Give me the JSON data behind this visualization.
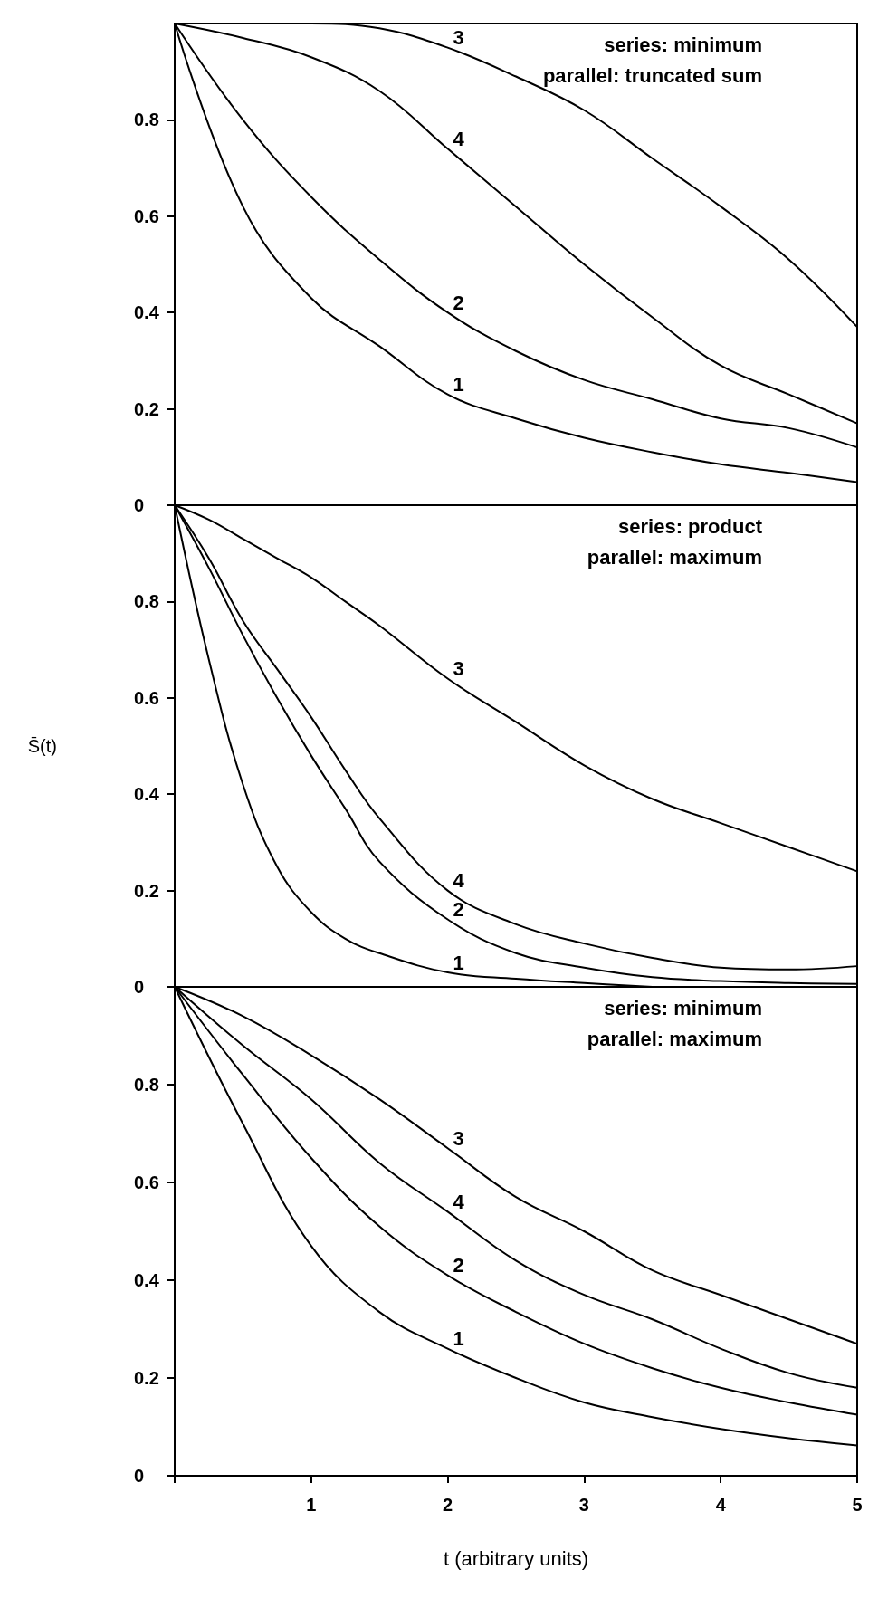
{
  "chart_data": [
    {
      "type": "line",
      "tick_labels": "y",
      "grid": false,
      "legend": false,
      "marker": "none",
      "line_style": "solid",
      "xlim": [
        0,
        5
      ],
      "ylim": [
        0,
        1
      ],
      "yticks": [
        0.8,
        0.6,
        0.4,
        0.2,
        0
      ],
      "x": [
        0,
        0.5,
        1,
        1.5,
        2,
        2.5,
        3,
        3.5,
        4,
        4.5,
        5
      ],
      "series": [
        {
          "name": "1",
          "color": "#000000",
          "values": [
            1,
            0.62,
            0.43,
            0.33,
            0.23,
            0.18,
            0.14,
            0.11,
            0.085,
            0.067,
            0.048
          ]
        },
        {
          "name": "2",
          "color": "#000000",
          "values": [
            1,
            0.8,
            0.64,
            0.51,
            0.4,
            0.32,
            0.26,
            0.22,
            0.18,
            0.16,
            0.12
          ]
        },
        {
          "name": "3",
          "color": "#000000",
          "values": [
            1,
            1,
            1,
            0.99,
            0.95,
            0.89,
            0.82,
            0.72,
            0.62,
            0.51,
            0.37
          ]
        },
        {
          "name": "4",
          "color": "#000000",
          "values": [
            1,
            0.97,
            0.93,
            0.86,
            0.74,
            0.62,
            0.5,
            0.39,
            0.29,
            0.23,
            0.17
          ]
        }
      ],
      "annotations": [
        "series: minimum",
        "parallel: truncated sum"
      ]
    },
    {
      "type": "line",
      "tick_labels": "y",
      "grid": false,
      "legend": false,
      "marker": "none",
      "line_style": "solid",
      "ylabel": "S̄(t)",
      "xlim": [
        0,
        5
      ],
      "ylim": [
        0,
        1
      ],
      "yticks": [
        0.8,
        0.6,
        0.4,
        0.2,
        0
      ],
      "x": [
        0,
        0.25,
        0.5,
        0.75,
        1,
        1.25,
        1.5,
        2,
        2.5,
        3,
        3.5,
        4,
        4.5,
        5
      ],
      "series": [
        {
          "name": "1",
          "color": "#000000",
          "values": [
            1,
            0.68,
            0.42,
            0.25,
            0.155,
            0.1,
            0.07,
            0.03,
            0.017,
            0.008,
            0,
            null,
            null,
            null
          ]
        },
        {
          "name": "2",
          "color": "#000000",
          "values": [
            1,
            0.87,
            0.73,
            0.6,
            0.48,
            0.37,
            0.26,
            0.14,
            0.07,
            0.04,
            0.02,
            0.012,
            0.008,
            0.006
          ]
        },
        {
          "name": "3",
          "color": "#000000",
          "values": [
            1,
            0.97,
            0.93,
            0.89,
            0.85,
            0.8,
            0.75,
            0.64,
            0.55,
            0.46,
            0.39,
            0.34,
            0.29,
            0.24
          ]
        },
        {
          "name": "4",
          "color": "#000000",
          "values": [
            1,
            0.89,
            0.76,
            0.66,
            0.56,
            0.45,
            0.35,
            0.2,
            0.13,
            0.09,
            0.06,
            0.04,
            0.036,
            0.043
          ]
        }
      ],
      "annotations": [
        "series: product",
        "parallel: maximum"
      ]
    },
    {
      "type": "line",
      "grid": false,
      "legend": false,
      "marker": "none",
      "line_style": "solid",
      "xlabel": "t (arbitrary units)",
      "xlim": [
        0,
        5
      ],
      "ylim": [
        0,
        1
      ],
      "xticks": [
        {
          "value": 0,
          "label": null
        },
        1,
        2,
        3,
        4,
        5
      ],
      "yticks": [
        0.8,
        0.6,
        0.4,
        0.2,
        0
      ],
      "x": [
        0,
        0.5,
        1,
        1.5,
        2,
        2.5,
        3,
        3.5,
        4,
        4.5,
        5
      ],
      "series": [
        {
          "name": "1",
          "color": "#000000",
          "values": [
            1,
            0.72,
            0.47,
            0.335,
            0.26,
            0.2,
            0.15,
            0.12,
            0.096,
            0.077,
            0.062
          ]
        },
        {
          "name": "2",
          "color": "#000000",
          "values": [
            1,
            0.82,
            0.65,
            0.51,
            0.41,
            0.335,
            0.27,
            0.22,
            0.18,
            0.15,
            0.125
          ]
        },
        {
          "name": "3",
          "color": "#000000",
          "values": [
            1,
            0.94,
            0.86,
            0.77,
            0.67,
            0.57,
            0.5,
            0.42,
            0.37,
            0.32,
            0.27
          ]
        },
        {
          "name": "4",
          "color": "#000000",
          "values": [
            1,
            0.88,
            0.77,
            0.64,
            0.54,
            0.44,
            0.37,
            0.32,
            0.26,
            0.21,
            0.18
          ]
        }
      ],
      "annotations": [
        "series: minimum",
        "parallel: maximum"
      ]
    }
  ]
}
